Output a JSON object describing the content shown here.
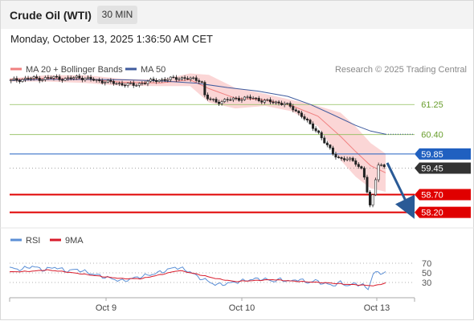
{
  "header": {
    "instrument": "Crude Oil (WTI)",
    "timeframe": "30 MIN",
    "datetime": "Monday, October 13, 2025 1:36:50 AM CET"
  },
  "legend": {
    "bollinger": "MA 20 + Bollinger Bands",
    "ma50": "MA 50",
    "credit": "Research © 2025 Trading Central",
    "rsi": "RSI",
    "rsi_ma": "9MA"
  },
  "colors": {
    "band_fill": "#f7b5b5",
    "ma20": "#f08080",
    "ma50": "#3f5b9e",
    "resistance": "#8fbe5a",
    "support": "#e00000",
    "pivot": "#2060c0",
    "last_price": "#333333",
    "candle_up": "#ffffff",
    "candle_down": "#222222",
    "rsi": "#5b8fd6",
    "rsi_ma": "#d81b2b",
    "arrow": "#2a5a96"
  },
  "chart_data": [
    {
      "type": "candlestick",
      "name": "price",
      "x_ticks": [
        "Oct 9",
        "Oct 10",
        "Oct 13"
      ],
      "ylim": [
        57.85,
        62.05
      ],
      "close_path": [
        [
          0,
          61.92
        ],
        [
          0.03,
          61.96
        ],
        [
          0.06,
          61.99
        ],
        [
          0.09,
          61.98
        ],
        [
          0.12,
          62.02
        ],
        [
          0.15,
          61.96
        ],
        [
          0.18,
          62.03
        ],
        [
          0.21,
          61.97
        ],
        [
          0.24,
          61.92
        ],
        [
          0.27,
          61.87
        ],
        [
          0.3,
          61.83
        ],
        [
          0.33,
          61.8
        ],
        [
          0.36,
          61.88
        ],
        [
          0.39,
          61.94
        ],
        [
          0.42,
          61.96
        ],
        [
          0.45,
          62.01
        ],
        [
          0.48,
          61.97
        ],
        [
          0.51,
          61.94
        ],
        [
          0.52,
          61.45
        ],
        [
          0.55,
          61.32
        ],
        [
          0.58,
          61.38
        ],
        [
          0.61,
          61.42
        ],
        [
          0.64,
          61.44
        ],
        [
          0.67,
          61.37
        ],
        [
          0.7,
          61.31
        ],
        [
          0.73,
          61.29
        ],
        [
          0.75,
          61.15
        ],
        [
          0.78,
          60.92
        ],
        [
          0.8,
          60.65
        ],
        [
          0.82,
          60.48
        ],
        [
          0.84,
          60.15
        ],
        [
          0.86,
          59.85
        ],
        [
          0.88,
          59.72
        ],
        [
          0.9,
          59.7
        ],
        [
          0.92,
          59.61
        ],
        [
          0.94,
          59.38
        ],
        [
          0.96,
          58.27
        ],
        [
          0.98,
          59.59
        ],
        [
          1.0,
          59.45
        ]
      ],
      "ma20_path": [
        [
          0,
          61.96
        ],
        [
          0.1,
          61.99
        ],
        [
          0.2,
          61.97
        ],
        [
          0.3,
          61.88
        ],
        [
          0.4,
          61.86
        ],
        [
          0.48,
          61.95
        ],
        [
          0.53,
          61.7
        ],
        [
          0.6,
          61.43
        ],
        [
          0.68,
          61.38
        ],
        [
          0.75,
          61.22
        ],
        [
          0.82,
          60.92
        ],
        [
          0.88,
          60.35
        ],
        [
          0.92,
          59.92
        ],
        [
          0.96,
          59.52
        ],
        [
          1.0,
          59.32
        ]
      ],
      "upper_band_path": [
        [
          0,
          61.99
        ],
        [
          0.1,
          62.08
        ],
        [
          0.2,
          62.08
        ],
        [
          0.3,
          61.98
        ],
        [
          0.4,
          61.95
        ],
        [
          0.48,
          62.13
        ],
        [
          0.53,
          62.09
        ],
        [
          0.6,
          61.72
        ],
        [
          0.68,
          61.55
        ],
        [
          0.75,
          61.38
        ],
        [
          0.82,
          61.21
        ],
        [
          0.88,
          61.02
        ],
        [
          0.92,
          60.63
        ],
        [
          0.96,
          60.16
        ],
        [
          1.0,
          59.86
        ]
      ],
      "lower_band_path": [
        [
          0,
          61.9
        ],
        [
          0.1,
          61.9
        ],
        [
          0.2,
          61.86
        ],
        [
          0.3,
          61.78
        ],
        [
          0.4,
          61.77
        ],
        [
          0.48,
          61.77
        ],
        [
          0.53,
          61.31
        ],
        [
          0.6,
          61.14
        ],
        [
          0.68,
          61.21
        ],
        [
          0.75,
          61.06
        ],
        [
          0.82,
          60.63
        ],
        [
          0.88,
          59.68
        ],
        [
          0.92,
          59.21
        ],
        [
          0.96,
          58.88
        ],
        [
          1.0,
          58.78
        ]
      ],
      "ma50_path": [
        [
          0,
          61.93
        ],
        [
          0.1,
          61.96
        ],
        [
          0.2,
          61.96
        ],
        [
          0.3,
          61.95
        ],
        [
          0.4,
          61.92
        ],
        [
          0.5,
          61.85
        ],
        [
          0.58,
          61.73
        ],
        [
          0.66,
          61.63
        ],
        [
          0.74,
          61.48
        ],
        [
          0.8,
          61.25
        ],
        [
          0.86,
          60.96
        ],
        [
          0.92,
          60.66
        ],
        [
          0.96,
          60.5
        ],
        [
          1.0,
          60.41
        ]
      ],
      "levels": [
        {
          "label": "61.25",
          "kind": "resistance",
          "value": 61.25
        },
        {
          "label": "60.40",
          "kind": "resistance",
          "value": 60.4
        },
        {
          "label": "59.85",
          "kind": "pivot",
          "value": 59.85
        },
        {
          "label": "59.45",
          "kind": "last",
          "value": 59.45
        },
        {
          "label": "58.70",
          "kind": "support",
          "value": 58.7
        },
        {
          "label": "58.20",
          "kind": "support",
          "value": 58.2
        }
      ],
      "projection": {
        "from": 59.6,
        "to": 58.2
      }
    },
    {
      "type": "line",
      "name": "RSI",
      "ylim": [
        0,
        100
      ],
      "y_ticks": [
        "70",
        "50",
        "30"
      ],
      "series": [
        {
          "name": "RSI",
          "values": [
            [
              0,
              60
            ],
            [
              0.03,
              57
            ],
            [
              0.06,
              64
            ],
            [
              0.09,
              56
            ],
            [
              0.12,
              62
            ],
            [
              0.15,
              54
            ],
            [
              0.18,
              57
            ],
            [
              0.21,
              50
            ],
            [
              0.24,
              44
            ],
            [
              0.27,
              38
            ],
            [
              0.3,
              33
            ],
            [
              0.33,
              39
            ],
            [
              0.36,
              44
            ],
            [
              0.39,
              49
            ],
            [
              0.42,
              56
            ],
            [
              0.44,
              62
            ],
            [
              0.46,
              58
            ],
            [
              0.48,
              52
            ],
            [
              0.5,
              42
            ],
            [
              0.52,
              35
            ],
            [
              0.55,
              25
            ],
            [
              0.58,
              28
            ],
            [
              0.61,
              32
            ],
            [
              0.64,
              36
            ],
            [
              0.67,
              38
            ],
            [
              0.7,
              33
            ],
            [
              0.72,
              36
            ],
            [
              0.75,
              32
            ],
            [
              0.77,
              38
            ],
            [
              0.79,
              29
            ],
            [
              0.81,
              34
            ],
            [
              0.84,
              27
            ],
            [
              0.86,
              24
            ],
            [
              0.88,
              30
            ],
            [
              0.9,
              23
            ],
            [
              0.92,
              28
            ],
            [
              0.94,
              24
            ],
            [
              0.955,
              15
            ],
            [
              0.965,
              49
            ],
            [
              1.0,
              51
            ]
          ]
        },
        {
          "name": "9MA",
          "values": [
            [
              0,
              52
            ],
            [
              0.05,
              53
            ],
            [
              0.1,
              56
            ],
            [
              0.15,
              52
            ],
            [
              0.2,
              47
            ],
            [
              0.25,
              42
            ],
            [
              0.3,
              38
            ],
            [
              0.35,
              38
            ],
            [
              0.4,
              46
            ],
            [
              0.45,
              55
            ],
            [
              0.5,
              47
            ],
            [
              0.55,
              38
            ],
            [
              0.6,
              32
            ],
            [
              0.65,
              34
            ],
            [
              0.7,
              36
            ],
            [
              0.75,
              33
            ],
            [
              0.8,
              31
            ],
            [
              0.85,
              29
            ],
            [
              0.9,
              26
            ],
            [
              0.95,
              24
            ],
            [
              0.97,
              23
            ],
            [
              1.0,
              29
            ]
          ]
        }
      ]
    }
  ]
}
